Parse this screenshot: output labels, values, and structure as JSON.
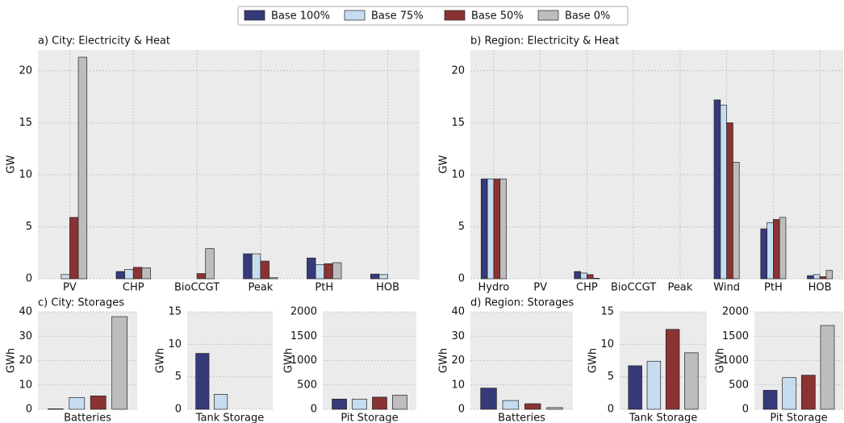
{
  "chart_data": [
    {
      "type": "bar",
      "title": "a) City: Electricity & Heat",
      "y_label": "GW",
      "categories": [
        "PV",
        "CHP",
        "BioCCGT",
        "Peak",
        "PtH",
        "HOB"
      ],
      "ylim": [
        0,
        22
      ],
      "yticks": [
        0,
        5,
        10,
        15,
        20
      ],
      "grid": true,
      "series": [
        {
          "name": "Base 100%",
          "color": "#353a7a",
          "values": [
            0,
            0.7,
            0,
            2.4,
            2.0,
            0.45
          ]
        },
        {
          "name": "Base 75%",
          "color": "#c6dcf0",
          "values": [
            0.4,
            0.9,
            0,
            2.4,
            1.35,
            0.4
          ]
        },
        {
          "name": "Base 50%",
          "color": "#8b3333",
          "values": [
            5.9,
            1.1,
            0.5,
            1.7,
            1.45,
            0
          ]
        },
        {
          "name": "Base 0%",
          "color": "#bdbdbd",
          "values": [
            21.3,
            1.05,
            2.9,
            0.1,
            1.55,
            0
          ]
        }
      ]
    },
    {
      "type": "bar",
      "title": "b) Region: Electricity & Heat",
      "y_label": "GW",
      "categories": [
        "Hydro",
        "PV",
        "CHP",
        "BioCCGT",
        "Peak",
        "Wind",
        "PtH",
        "HOB"
      ],
      "ylim": [
        0,
        22
      ],
      "yticks": [
        0,
        5,
        10,
        15,
        20
      ],
      "grid": true,
      "series": [
        {
          "name": "Base 100%",
          "color": "#353a7a",
          "values": [
            9.6,
            0,
            0.7,
            0,
            0,
            17.2,
            4.8,
            0.3
          ]
        },
        {
          "name": "Base 75%",
          "color": "#c6dcf0",
          "values": [
            9.6,
            0,
            0.55,
            0,
            0,
            16.7,
            5.4,
            0.4
          ]
        },
        {
          "name": "Base 50%",
          "color": "#8b3333",
          "values": [
            9.6,
            0,
            0.4,
            0,
            0,
            15.0,
            5.7,
            0.2
          ]
        },
        {
          "name": "Base 0%",
          "color": "#bdbdbd",
          "values": [
            9.6,
            0,
            0.05,
            0,
            0,
            11.2,
            5.9,
            0.8
          ]
        }
      ]
    },
    {
      "type": "bar",
      "title": "c) City: Storages",
      "y_label": "GWh",
      "categories": [
        "Batteries"
      ],
      "ylim": [
        0,
        40
      ],
      "yticks": [
        0,
        10,
        20,
        30,
        40
      ],
      "grid": true,
      "series": [
        {
          "name": "Base 100%",
          "color": "#353a7a",
          "values": [
            0.2
          ]
        },
        {
          "name": "Base 75%",
          "color": "#c6dcf0",
          "values": [
            4.8
          ]
        },
        {
          "name": "Base 50%",
          "color": "#8b3333",
          "values": [
            5.5
          ]
        },
        {
          "name": "Base 0%",
          "color": "#bdbdbd",
          "values": [
            38
          ]
        }
      ]
    },
    {
      "type": "bar",
      "y_label": "GWh",
      "categories": [
        "Tank Storage"
      ],
      "ylim": [
        0,
        15
      ],
      "yticks": [
        0,
        5,
        10,
        15
      ],
      "grid": true,
      "series": [
        {
          "name": "Base 100%",
          "color": "#353a7a",
          "values": [
            8.6
          ]
        },
        {
          "name": "Base 75%",
          "color": "#c6dcf0",
          "values": [
            2.3
          ]
        },
        {
          "name": "Base 50%",
          "color": "#8b3333",
          "values": [
            0
          ]
        },
        {
          "name": "Base 0%",
          "color": "#bdbdbd",
          "values": [
            0
          ]
        }
      ]
    },
    {
      "type": "bar",
      "y_label": "GWh",
      "categories": [
        "Pit Storage"
      ],
      "ylim": [
        0,
        2000
      ],
      "yticks": [
        0,
        500,
        1000,
        1500,
        2000
      ],
      "grid": true,
      "series": [
        {
          "name": "Base 100%",
          "color": "#353a7a",
          "values": [
            210
          ]
        },
        {
          "name": "Base 75%",
          "color": "#c6dcf0",
          "values": [
            210
          ]
        },
        {
          "name": "Base 50%",
          "color": "#8b3333",
          "values": [
            250
          ]
        },
        {
          "name": "Base 0%",
          "color": "#bdbdbd",
          "values": [
            290
          ]
        }
      ]
    },
    {
      "type": "bar",
      "title": "d) Region: Storages",
      "y_label": "GWh",
      "categories": [
        "Batteries"
      ],
      "ylim": [
        0,
        40
      ],
      "yticks": [
        0,
        10,
        20,
        30,
        40
      ],
      "grid": true,
      "series": [
        {
          "name": "Base 100%",
          "color": "#353a7a",
          "values": [
            8.7
          ]
        },
        {
          "name": "Base 75%",
          "color": "#c6dcf0",
          "values": [
            3.6
          ]
        },
        {
          "name": "Base 50%",
          "color": "#8b3333",
          "values": [
            2.3
          ]
        },
        {
          "name": "Base 0%",
          "color": "#bdbdbd",
          "values": [
            0.7
          ]
        }
      ]
    },
    {
      "type": "bar",
      "y_label": "GWh",
      "categories": [
        "Tank Storage"
      ],
      "ylim": [
        0,
        15
      ],
      "yticks": [
        0,
        5,
        10,
        15
      ],
      "grid": true,
      "series": [
        {
          "name": "Base 100%",
          "color": "#353a7a",
          "values": [
            6.7
          ]
        },
        {
          "name": "Base 75%",
          "color": "#c6dcf0",
          "values": [
            7.4
          ]
        },
        {
          "name": "Base 50%",
          "color": "#8b3333",
          "values": [
            12.3
          ]
        },
        {
          "name": "Base 0%",
          "color": "#bdbdbd",
          "values": [
            8.7
          ]
        }
      ]
    },
    {
      "type": "bar",
      "y_label": "GWh",
      "categories": [
        "Pit Storage"
      ],
      "ylim": [
        0,
        2000
      ],
      "yticks": [
        0,
        500,
        1000,
        1500,
        2000
      ],
      "grid": true,
      "series": [
        {
          "name": "Base 100%",
          "color": "#353a7a",
          "values": [
            390
          ]
        },
        {
          "name": "Base 75%",
          "color": "#c6dcf0",
          "values": [
            650
          ]
        },
        {
          "name": "Base 50%",
          "color": "#8b3333",
          "values": [
            700
          ]
        },
        {
          "name": "Base 0%",
          "color": "#bdbdbd",
          "values": [
            1720
          ]
        }
      ]
    }
  ]
}
